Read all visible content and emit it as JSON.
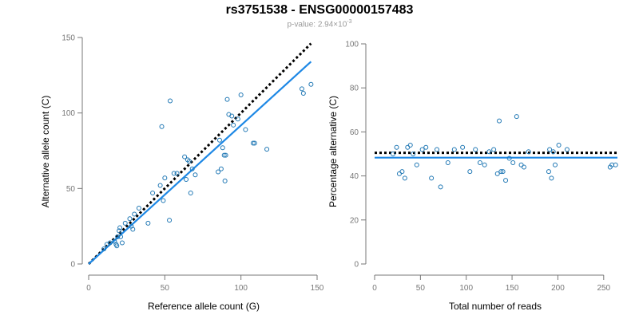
{
  "header": {
    "title": "rs3751538 - ENSG00000157483",
    "pvalue_label": "p-value: 2.94×10",
    "pvalue_exponent": "-3"
  },
  "colors": {
    "points": "#1f77b4",
    "fit": "#1e88e5",
    "dotted": "#000000",
    "axis": "#777777",
    "tick_label": "#777777"
  },
  "chart_data": [
    {
      "type": "scatter",
      "title": "",
      "xlabel": "Reference allele count (G)",
      "ylabel": "Alternative allele count (C)",
      "xlim": [
        0,
        150
      ],
      "ylim": [
        0,
        150
      ],
      "xticks": [
        0,
        50,
        100,
        150
      ],
      "yticks": [
        0,
        50,
        100,
        150
      ],
      "x": [
        10,
        12,
        14,
        17,
        18,
        18.5,
        19,
        20,
        20.5,
        21,
        22,
        24,
        27,
        28,
        29,
        30,
        33,
        39,
        42,
        47,
        48,
        49,
        50,
        53,
        53.5,
        56,
        58,
        63,
        64,
        65,
        66,
        67,
        68,
        70,
        85,
        86,
        87,
        88,
        89,
        89.5,
        90,
        91,
        92,
        94,
        95,
        98,
        100,
        103,
        108,
        109,
        117,
        140,
        141,
        146
      ],
      "y": [
        10,
        13,
        14,
        15,
        13,
        12,
        18,
        22,
        24,
        18,
        14,
        27,
        30,
        25,
        23,
        33,
        37,
        27,
        47,
        52,
        91,
        42,
        57,
        29,
        108,
        60,
        60,
        71,
        56,
        69,
        68,
        47,
        63,
        59,
        61,
        82,
        63,
        77,
        72,
        55,
        72,
        109,
        99,
        98,
        92,
        96,
        112,
        89,
        80,
        80,
        76,
        116,
        113,
        119
      ],
      "fit_line": {
        "label": "fit",
        "x": [
          0,
          146
        ],
        "y": [
          0,
          134
        ]
      },
      "reference_line": {
        "label": "y = x",
        "x": [
          0,
          146
        ],
        "y": [
          0,
          146
        ]
      }
    },
    {
      "type": "scatter",
      "title": "",
      "xlabel": "Total number of reads",
      "ylabel": "Percentage alternative (C)",
      "xlim": [
        0,
        265
      ],
      "ylim": [
        0,
        100
      ],
      "xticks": [
        0,
        50,
        100,
        150,
        200,
        250
      ],
      "yticks": [
        0,
        20,
        40,
        60,
        80,
        100
      ],
      "x": [
        20,
        24,
        27,
        30,
        33,
        36,
        39,
        42,
        46,
        52,
        56,
        62,
        68,
        72,
        80,
        87,
        96,
        104,
        110,
        115,
        120,
        125,
        130,
        134,
        136,
        138,
        140,
        143,
        147,
        151,
        155,
        160,
        163,
        168,
        190,
        191,
        193,
        195,
        197,
        201,
        210,
        257,
        259,
        263
      ],
      "y": [
        50,
        53,
        41,
        42,
        39,
        53,
        54,
        50,
        45,
        52,
        53,
        39,
        52,
        35,
        46,
        52,
        53,
        42,
        52,
        46,
        45,
        51,
        52,
        41,
        65,
        42,
        42,
        38,
        48,
        46,
        67,
        45,
        44,
        51,
        42,
        52,
        39,
        51,
        45,
        54,
        52,
        44,
        45,
        45
      ],
      "fit_line": {
        "label": "fit",
        "x": [
          0,
          265
        ],
        "y": [
          48.3,
          48.3
        ]
      },
      "reference_line": {
        "label": "50%",
        "x": [
          0,
          265
        ],
        "y": [
          50.5,
          50.5
        ]
      }
    }
  ]
}
